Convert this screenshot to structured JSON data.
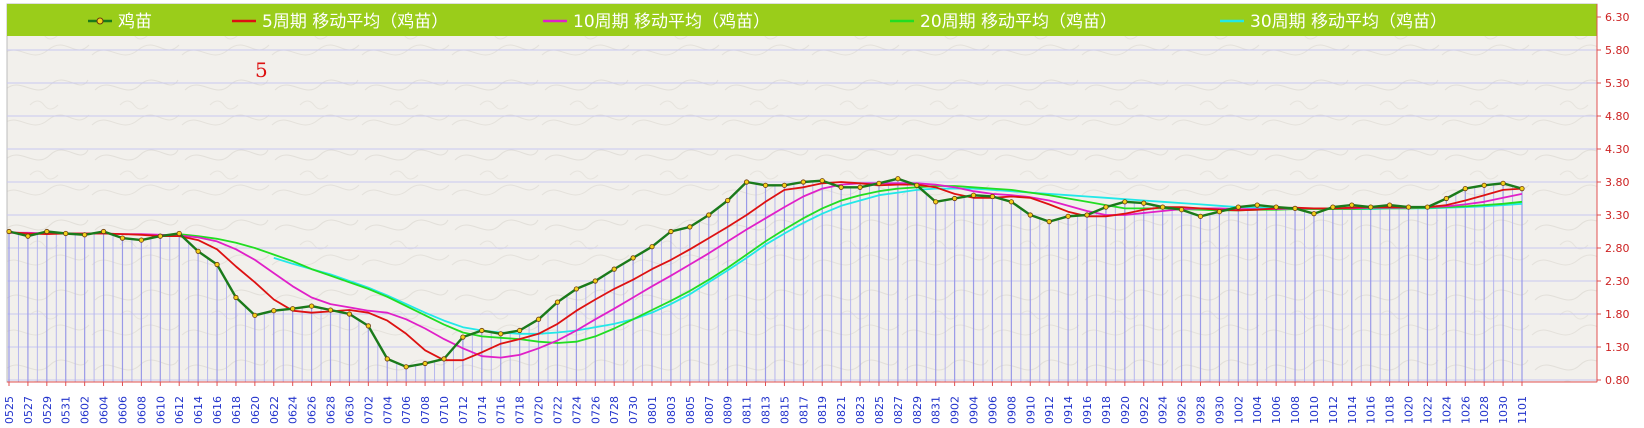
{
  "chart_data": {
    "type": "line",
    "title": "",
    "xlabel": "",
    "ylabel": "",
    "ylim": [
      0.8,
      6.3
    ],
    "yticks": [
      "0.80",
      "1.30",
      "1.80",
      "2.30",
      "2.80",
      "3.30",
      "3.80",
      "4.30",
      "4.80",
      "5.30",
      "5.80",
      "6.30"
    ],
    "categories": [
      "0525",
      "0527",
      "0529",
      "0531",
      "0602",
      "0604",
      "0606",
      "0608",
      "0610",
      "0612",
      "0614",
      "0616",
      "0618",
      "0620",
      "0622",
      "0624",
      "0626",
      "0628",
      "0630",
      "0702",
      "0704",
      "0706",
      "0708",
      "0710",
      "0712",
      "0714",
      "0716",
      "0718",
      "0720",
      "0722",
      "0724",
      "0726",
      "0728",
      "0730",
      "0801",
      "0803",
      "0805",
      "0807",
      "0809",
      "0811",
      "0813",
      "0815",
      "0817",
      "0819",
      "0821",
      "0823",
      "0825",
      "0827",
      "0829",
      "0831",
      "0902",
      "0904",
      "0906",
      "0908",
      "0910",
      "0912",
      "0914",
      "0916",
      "0918",
      "0920",
      "0922",
      "0924",
      "0926",
      "0928",
      "0930",
      "1002",
      "1004",
      "1006",
      "1008",
      "1010",
      "1012",
      "1014",
      "1016",
      "1018",
      "1020",
      "1022",
      "1024",
      "1026",
      "1028",
      "1030",
      "1101"
    ],
    "annotation": "5",
    "series": [
      {
        "name": "鸡苗",
        "color": "#1a7a1a",
        "values": [
          3.05,
          2.98,
          3.05,
          3.02,
          3.0,
          3.05,
          2.95,
          2.92,
          2.98,
          3.02,
          2.75,
          2.55,
          2.05,
          1.78,
          1.85,
          1.88,
          1.92,
          1.86,
          1.8,
          1.62,
          1.12,
          1.0,
          1.05,
          1.12,
          1.45,
          1.55,
          1.5,
          1.55,
          1.72,
          1.98,
          2.18,
          2.3,
          2.48,
          2.65,
          2.82,
          3.05,
          3.12,
          3.3,
          3.52,
          3.8,
          3.75,
          3.75,
          3.8,
          3.82,
          3.72,
          3.72,
          3.78,
          3.85,
          3.75,
          3.5,
          3.55,
          3.6,
          3.58,
          3.5,
          3.3,
          3.2,
          3.28,
          3.3,
          3.42,
          3.5,
          3.48,
          3.42,
          3.38,
          3.28,
          3.35,
          3.42,
          3.45,
          3.42,
          3.4,
          3.32,
          3.42,
          3.45,
          3.42,
          3.45,
          3.42,
          3.42,
          3.55,
          3.7,
          3.75,
          3.78,
          3.7
        ]
      },
      {
        "name": "5周期 移动平均（鸡苗）",
        "color": "#dd1111",
        "values": [
          3.04,
          3.02,
          3.01,
          3.02,
          3.02,
          3.02,
          3.01,
          3.0,
          2.98,
          2.98,
          2.92,
          2.78,
          2.52,
          2.28,
          2.02,
          1.85,
          1.82,
          1.84,
          1.86,
          1.82,
          1.7,
          1.5,
          1.25,
          1.1,
          1.1,
          1.22,
          1.35,
          1.42,
          1.5,
          1.65,
          1.85,
          2.02,
          2.18,
          2.32,
          2.48,
          2.62,
          2.78,
          2.95,
          3.12,
          3.3,
          3.5,
          3.68,
          3.72,
          3.78,
          3.8,
          3.78,
          3.75,
          3.76,
          3.76,
          3.72,
          3.62,
          3.56,
          3.56,
          3.58,
          3.56,
          3.46,
          3.35,
          3.28,
          3.28,
          3.32,
          3.38,
          3.42,
          3.42,
          3.4,
          3.38,
          3.37,
          3.38,
          3.4,
          3.41,
          3.4,
          3.4,
          3.41,
          3.42,
          3.42,
          3.42,
          3.42,
          3.45,
          3.52,
          3.6,
          3.68,
          3.7
        ]
      },
      {
        "name": "10周期 移动平均（鸡苗）",
        "color": "#e020c8",
        "values": [
          3.03,
          3.03,
          3.02,
          3.02,
          3.02,
          3.02,
          3.01,
          3.01,
          3.0,
          2.99,
          2.96,
          2.9,
          2.78,
          2.62,
          2.42,
          2.22,
          2.05,
          1.95,
          1.9,
          1.85,
          1.82,
          1.72,
          1.58,
          1.42,
          1.28,
          1.16,
          1.14,
          1.18,
          1.28,
          1.4,
          1.55,
          1.72,
          1.88,
          2.05,
          2.22,
          2.38,
          2.55,
          2.72,
          2.9,
          3.08,
          3.25,
          3.42,
          3.58,
          3.7,
          3.76,
          3.78,
          3.78,
          3.78,
          3.78,
          3.76,
          3.72,
          3.66,
          3.62,
          3.6,
          3.57,
          3.52,
          3.44,
          3.36,
          3.3,
          3.3,
          3.33,
          3.36,
          3.39,
          3.4,
          3.4,
          3.39,
          3.39,
          3.39,
          3.4,
          3.4,
          3.4,
          3.4,
          3.41,
          3.41,
          3.41,
          3.42,
          3.43,
          3.46,
          3.5,
          3.56,
          3.62
        ]
      },
      {
        "name": "20周期 移动平均（鸡苗）",
        "color": "#22dd22",
        "values": [
          null,
          null,
          null,
          null,
          null,
          null,
          null,
          null,
          null,
          3.01,
          2.98,
          2.94,
          2.88,
          2.8,
          2.7,
          2.6,
          2.48,
          2.38,
          2.28,
          2.18,
          2.06,
          1.92,
          1.78,
          1.64,
          1.52,
          1.46,
          1.44,
          1.42,
          1.38,
          1.36,
          1.38,
          1.46,
          1.58,
          1.72,
          1.86,
          2.0,
          2.15,
          2.32,
          2.5,
          2.7,
          2.9,
          3.08,
          3.25,
          3.4,
          3.52,
          3.6,
          3.66,
          3.7,
          3.72,
          3.74,
          3.74,
          3.72,
          3.7,
          3.68,
          3.64,
          3.6,
          3.55,
          3.5,
          3.45,
          3.4,
          3.4,
          3.4,
          3.39,
          3.38,
          3.37,
          3.37,
          3.38,
          3.38,
          3.39,
          3.39,
          3.39,
          3.39,
          3.4,
          3.4,
          3.4,
          3.41,
          3.42,
          3.43,
          3.45,
          3.47,
          3.5
        ]
      },
      {
        "name": "30周期 移动平均（鸡苗）",
        "color": "#22e8e8",
        "values": [
          null,
          null,
          null,
          null,
          null,
          null,
          null,
          null,
          null,
          null,
          null,
          null,
          null,
          null,
          2.65,
          2.56,
          2.48,
          2.4,
          2.3,
          2.2,
          2.08,
          1.95,
          1.82,
          1.7,
          1.6,
          1.55,
          1.52,
          1.5,
          1.5,
          1.52,
          1.55,
          1.6,
          1.65,
          1.72,
          1.82,
          1.95,
          2.1,
          2.28,
          2.46,
          2.65,
          2.85,
          3.02,
          3.18,
          3.32,
          3.44,
          3.52,
          3.6,
          3.64,
          3.68,
          3.7,
          3.7,
          3.7,
          3.68,
          3.66,
          3.64,
          3.62,
          3.6,
          3.58,
          3.56,
          3.54,
          3.52,
          3.5,
          3.48,
          3.46,
          3.44,
          3.42,
          3.41,
          3.4,
          3.4,
          3.39,
          3.39,
          3.39,
          3.39,
          3.4,
          3.4,
          3.4,
          3.41,
          3.42,
          3.43,
          3.45,
          3.47
        ]
      }
    ]
  }
}
